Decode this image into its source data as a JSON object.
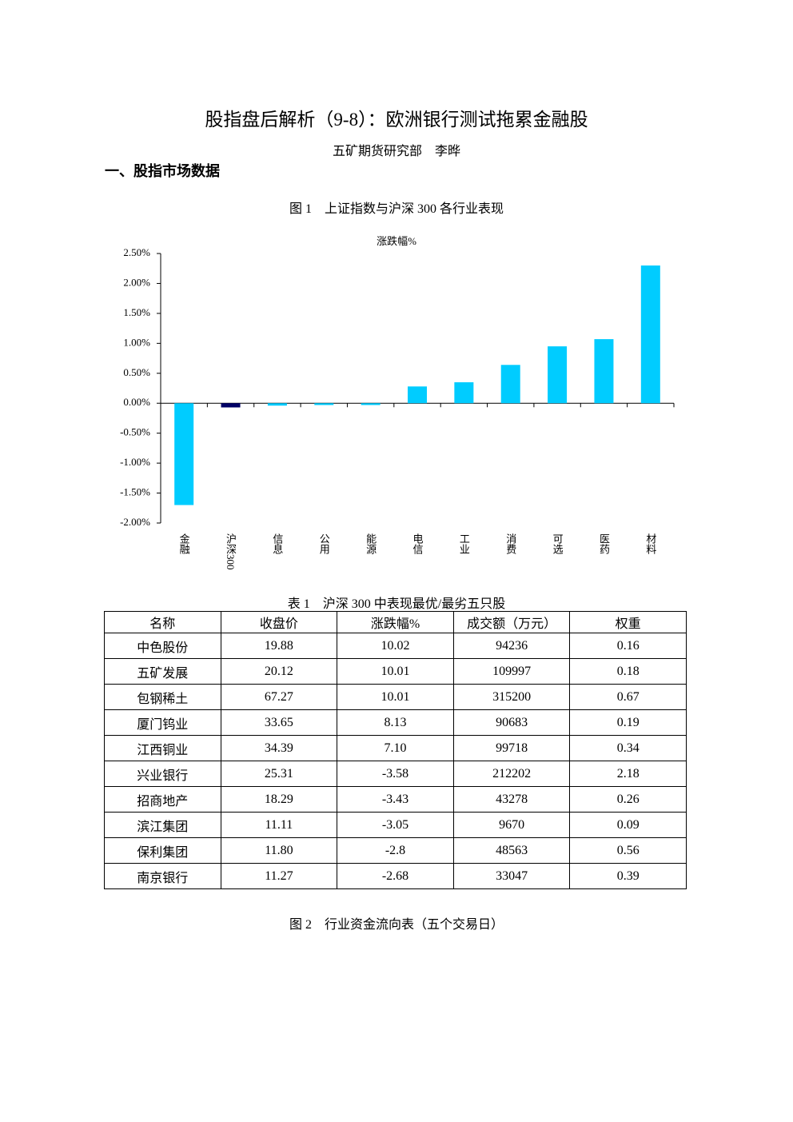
{
  "header": {
    "title": "股指盘后解析（9-8）：欧洲银行测试拖累金融股",
    "author": "五矿期货研究部　李晔"
  },
  "section": {
    "heading": "一、股指市场数据"
  },
  "figure1": {
    "caption": "图 1　上证指数与沪深 300 各行业表现"
  },
  "chart_data": {
    "type": "bar",
    "title": "涨跌幅%",
    "categories": [
      "金融",
      "沪深300",
      "信息",
      "公用",
      "能源",
      "电信",
      "工业",
      "消费",
      "可选",
      "医药",
      "材料"
    ],
    "values": [
      -1.7,
      -0.07,
      -0.04,
      -0.03,
      -0.03,
      0.28,
      0.35,
      0.64,
      0.95,
      1.07,
      2.3
    ],
    "colors": [
      "#00ccff",
      "#000066",
      "#00ccff",
      "#00ccff",
      "#00ccff",
      "#00ccff",
      "#00ccff",
      "#00ccff",
      "#00ccff",
      "#00ccff",
      "#00ccff"
    ],
    "ylim": [
      -2.0,
      2.5
    ],
    "yticks": [
      {
        "value": -2.0,
        "label": "-2.00%"
      },
      {
        "value": -1.5,
        "label": "-1.50%"
      },
      {
        "value": -1.0,
        "label": "-1.00%"
      },
      {
        "value": -0.5,
        "label": "-0.50%"
      },
      {
        "value": 0,
        "label": "0.00%"
      },
      {
        "value": 0.5,
        "label": "0.50%"
      },
      {
        "value": 1.0,
        "label": "1.00%"
      },
      {
        "value": 1.5,
        "label": "1.50%"
      },
      {
        "value": 2.0,
        "label": "2.00%"
      },
      {
        "value": 2.5,
        "label": "2.50%"
      }
    ],
    "grid": false
  },
  "table": {
    "caption": "表 1　沪深 300 中表现最优/最劣五只股",
    "columns": [
      "名称",
      "收盘价",
      "涨跌幅%",
      "成交额（万元）",
      "权重"
    ],
    "rows": [
      [
        "中色股份",
        "19.88",
        "10.02",
        "94236",
        "0.16"
      ],
      [
        "五矿发展",
        "20.12",
        "10.01",
        "109997",
        "0.18"
      ],
      [
        "包钢稀土",
        "67.27",
        "10.01",
        "315200",
        "0.67"
      ],
      [
        "厦门钨业",
        "33.65",
        "8.13",
        "90683",
        "0.19"
      ],
      [
        "江西铜业",
        "34.39",
        "7.10",
        "99718",
        "0.34"
      ],
      [
        "兴业银行",
        "25.31",
        "-3.58",
        "212202",
        "2.18"
      ],
      [
        "招商地产",
        "18.29",
        "-3.43",
        "43278",
        "0.26"
      ],
      [
        "滨江集团",
        "11.11",
        "-3.05",
        "9670",
        "0.09"
      ],
      [
        "保利集团",
        "11.80",
        "-2.8",
        "48563",
        "0.56"
      ],
      [
        "南京银行",
        "11.27",
        "-2.68",
        "33047",
        "0.39"
      ]
    ]
  },
  "figure2": {
    "caption": "图 2　行业资金流向表（五个交易日）"
  }
}
